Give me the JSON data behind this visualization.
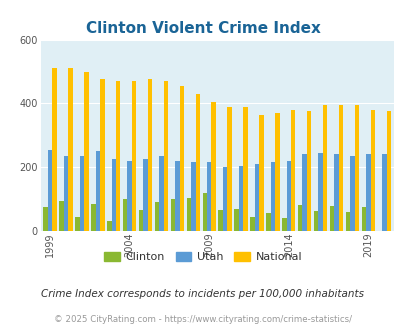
{
  "title": "Clinton Violent Crime Index",
  "title_color": "#1a6496",
  "years": [
    1999,
    2000,
    2001,
    2002,
    2003,
    2004,
    2005,
    2006,
    2007,
    2008,
    2009,
    2010,
    2011,
    2012,
    2013,
    2014,
    2015,
    2016,
    2017,
    2018,
    2019,
    2020
  ],
  "clinton": [
    75,
    95,
    45,
    85,
    30,
    100,
    65,
    90,
    100,
    105,
    120,
    65,
    68,
    45,
    55,
    40,
    82,
    64,
    79,
    60,
    75,
    0
  ],
  "utah": [
    255,
    235,
    235,
    250,
    225,
    220,
    225,
    235,
    220,
    215,
    215,
    200,
    205,
    210,
    215,
    220,
    240,
    245,
    240,
    235,
    240,
    240
  ],
  "national": [
    510,
    510,
    500,
    475,
    470,
    470,
    475,
    470,
    455,
    430,
    405,
    390,
    390,
    365,
    370,
    380,
    375,
    395,
    395,
    395,
    380,
    375
  ],
  "clinton_color": "#8ab832",
  "utah_color": "#5b9bd5",
  "national_color": "#ffc000",
  "bg_color": "#e0eff5",
  "ylim": [
    0,
    600
  ],
  "yticks": [
    0,
    200,
    400,
    600
  ],
  "xlabel_years": [
    1999,
    2004,
    2009,
    2014,
    2019
  ],
  "subtitle": "Crime Index corresponds to incidents per 100,000 inhabitants",
  "footer": "© 2025 CityRating.com - https://www.cityrating.com/crime-statistics/",
  "footer_color": "#999999",
  "subtitle_color": "#333333",
  "legend_labels": [
    "Clinton",
    "Utah",
    "National"
  ]
}
